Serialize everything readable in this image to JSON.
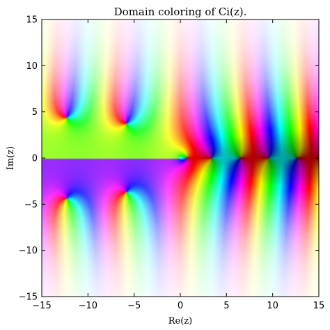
{
  "chart_data": {
    "type": "heatmap",
    "title": "Domain coloring of Ci(z).",
    "xlabel": "Re(z)",
    "ylabel": "Im(z)",
    "xlim": [
      -15,
      15
    ],
    "ylim": [
      -15,
      15
    ],
    "x_ticks": [
      -15,
      -10,
      -5,
      0,
      5,
      10,
      15
    ],
    "y_ticks": [
      -15,
      -10,
      -5,
      0,
      5,
      10,
      15
    ],
    "x_tick_labels": [
      "−15",
      "−10",
      "−5",
      "0",
      "5",
      "10",
      "15"
    ],
    "y_tick_labels": [
      "−15",
      "−10",
      "−5",
      "0",
      "5",
      "10",
      "15"
    ],
    "grid": false,
    "branch_cut": {
      "re_max": 0,
      "im": 0
    },
    "zeros": [
      {
        "re": -12.3,
        "im": 4.5
      },
      {
        "re": -5.9,
        "im": 4.0
      },
      {
        "re": -12.3,
        "im": -4.5
      },
      {
        "re": -5.9,
        "im": -4.0
      },
      {
        "re": 0.6,
        "im": 0
      },
      {
        "re": 3.4,
        "im": 0
      },
      {
        "re": 6.4,
        "im": 0
      },
      {
        "re": 9.5,
        "im": 0
      },
      {
        "re": 12.6,
        "im": 0
      }
    ],
    "colormap": "hue = argument of Ci(z), lightness = magnitude"
  }
}
